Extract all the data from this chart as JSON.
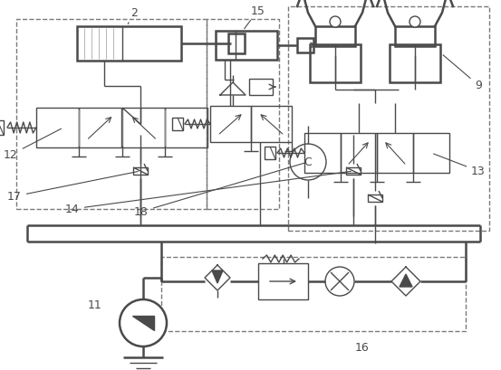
{
  "bg_color": "#ffffff",
  "lc": "#4a4a4a",
  "dc": "#7a7a7a",
  "figsize": [
    5.53,
    4.1
  ],
  "dpi": 100
}
